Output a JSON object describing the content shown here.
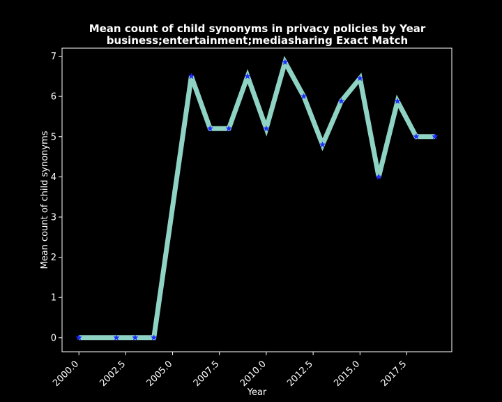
{
  "chart_data": {
    "type": "line",
    "title": "Mean count of child synonyms in privacy policies by Year",
    "subtitle": "business;entertainment;mediasharing Exact Match",
    "xlabel": "Year",
    "ylabel": "Mean count of child synonyms",
    "xlim": [
      1999.1,
      2019.9
    ],
    "ylim": [
      -0.35,
      7.2
    ],
    "x_ticks": [
      2000.0,
      2002.5,
      2005.0,
      2007.5,
      2010.0,
      2012.5,
      2015.0,
      2017.5
    ],
    "x_tick_labels": [
      "2000.0",
      "2002.5",
      "2005.0",
      "2007.5",
      "2010.0",
      "2012.5",
      "2015.0",
      "2017.5"
    ],
    "y_ticks": [
      0,
      1,
      2,
      3,
      4,
      5,
      6,
      7
    ],
    "y_tick_labels": [
      "0",
      "1",
      "2",
      "3",
      "4",
      "5",
      "6",
      "7"
    ],
    "grid": false,
    "series": [
      {
        "x": [
          2000,
          2002,
          2003,
          2004,
          2006,
          2007,
          2008,
          2009,
          2010,
          2011,
          2012,
          2013,
          2014,
          2015,
          2016,
          2017,
          2018,
          2019
        ],
        "y": [
          0,
          0,
          0,
          0,
          6.5,
          5.2,
          5.2,
          6.5,
          5.2,
          6.85,
          6.0,
          4.8,
          5.88,
          6.45,
          4.0,
          5.88,
          5.0,
          5.0
        ],
        "line_color": "#8fd3c4",
        "marker_color": "#1f2bff",
        "marker": "star"
      }
    ],
    "background_color": "#000000",
    "foreground_color": "#ffffff"
  }
}
